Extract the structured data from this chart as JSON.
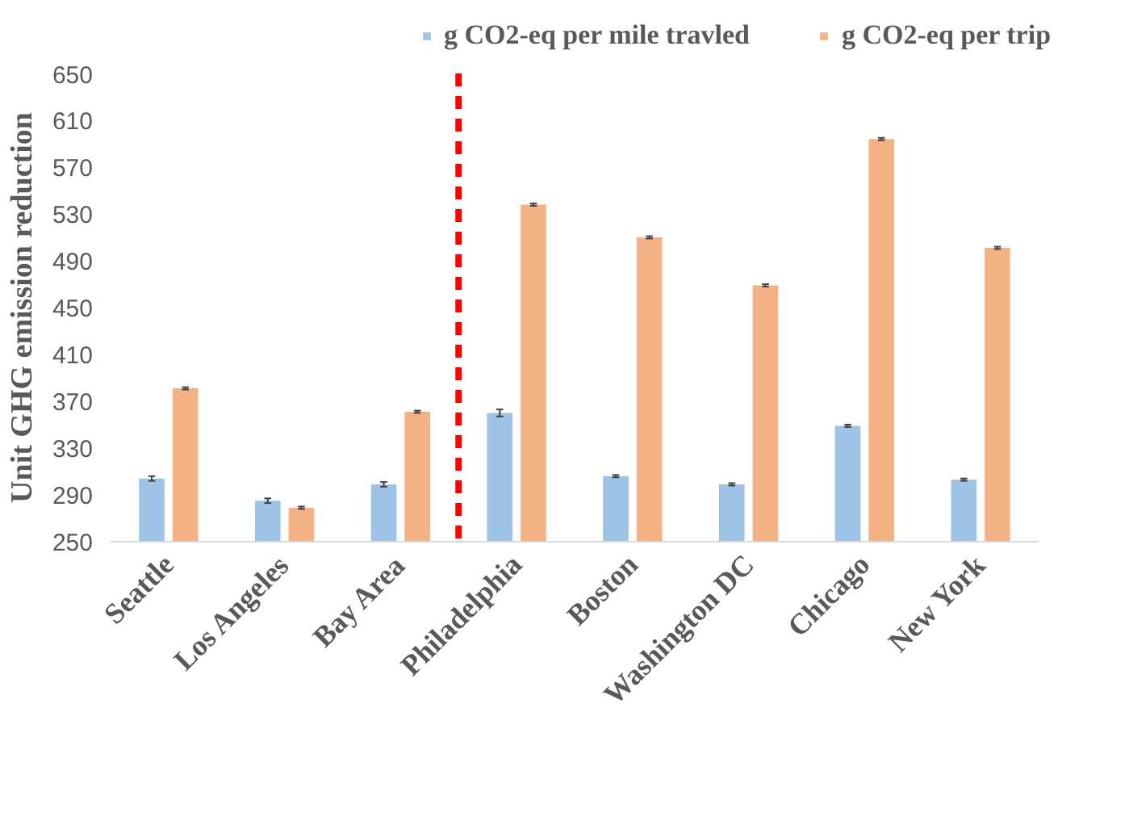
{
  "chart_data": {
    "type": "bar",
    "ylabel": "Unit GHG emission reduction",
    "categories": [
      "Seattle",
      "Los Angeles",
      "Bay Area",
      "Philadelphia",
      "Boston",
      "Washington DC",
      "Chicago",
      "New York"
    ],
    "series": [
      {
        "name": "g CO2-eq per mile travled",
        "color": "#9dc3e6",
        "values": [
          304,
          285,
          299,
          360,
          306,
          299,
          349,
          303
        ],
        "errors": [
          2,
          2,
          2,
          3,
          1,
          1,
          1,
          1
        ]
      },
      {
        "name": "g CO2-eq per trip",
        "color": "#f4b183",
        "values": [
          381,
          279,
          361,
          538,
          510,
          469,
          594,
          501
        ],
        "errors": [
          1,
          1,
          1,
          1,
          1,
          1,
          1,
          1
        ]
      }
    ],
    "ylim": [
      250,
      650
    ],
    "yticks": [
      250,
      290,
      330,
      370,
      410,
      450,
      490,
      530,
      570,
      610,
      650
    ],
    "grid": false,
    "legend": "top",
    "ref_lines": [
      {
        "axis": "x",
        "value": "Philadelphia",
        "color": "#ff0000",
        "line_style": "dashed"
      }
    ]
  }
}
